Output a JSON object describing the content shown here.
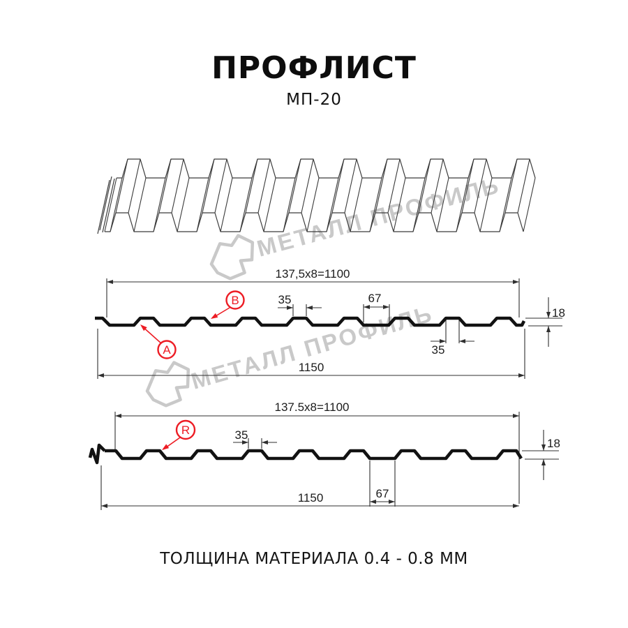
{
  "title": "ПРОФЛИСТ",
  "subtitle": "МП-20",
  "footer": "ТОЛЩИНА МАТЕРИАЛА 0.4 - 0.8 ММ",
  "watermark": {
    "brand": "МЕТАЛЛ ПРОФИЛЬ"
  },
  "colors": {
    "red": "#ed1c24",
    "line": "#2f2f2f",
    "profile": "#121212",
    "watermark_gray": "#c9c9c9"
  },
  "section_top": {
    "pitch_formula": "137,5x8=1100",
    "overall_width": "1150",
    "crest_width_top": "35",
    "valley_width": "67",
    "profile_height": "18",
    "crest_width_bottom": "35",
    "label_a": "A",
    "label_b": "B"
  },
  "section_bottom": {
    "pitch_formula": "137.5x8=1100",
    "overall_width": "1150",
    "crest_width": "35",
    "valley_width": "67",
    "profile_height": "18",
    "label_r": "R"
  }
}
